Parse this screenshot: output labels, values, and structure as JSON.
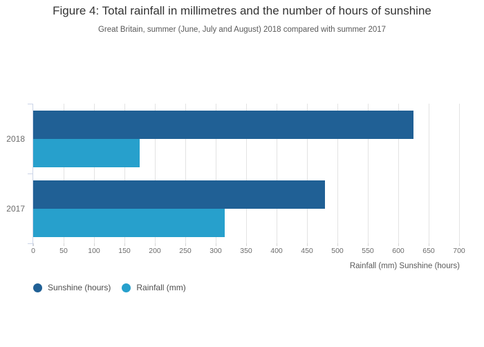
{
  "title": "Figure 4: Total rainfall in millimetres and the number of hours of sunshine",
  "subtitle": "Great Britain, summer (June, July and August) 2018 compared with summer 2017",
  "colors": {
    "sunshine": "#206095",
    "rainfall": "#27A0CC",
    "gridline": "#e3e3e3",
    "axis_line": "#ccd5e8",
    "title_text": "#333333",
    "subtitle_text": "#595959",
    "tick_text": "#6b6b6b"
  },
  "chart_data": {
    "type": "bar",
    "orientation": "horizontal",
    "title": "Figure 4: Total rainfall in millimetres and the number of hours of sunshine",
    "subtitle": "Great Britain, summer (June, July and August) 2018 compared with summer 2017",
    "categories": [
      "2018",
      "2017"
    ],
    "series": [
      {
        "name": "Sunshine (hours)",
        "color": "#206095",
        "values": [
          625,
          480
        ]
      },
      {
        "name": "Rainfall (mm)",
        "color": "#27A0CC",
        "values": [
          175,
          315
        ]
      }
    ],
    "x_axis": {
      "label": "Rainfall (mm) Sunshine (hours)",
      "min": 0,
      "max": 700,
      "ticks": [
        0,
        50,
        100,
        150,
        200,
        250,
        300,
        350,
        400,
        450,
        500,
        550,
        600,
        650,
        700
      ]
    },
    "grid": true,
    "legend_position": "bottom-left"
  }
}
